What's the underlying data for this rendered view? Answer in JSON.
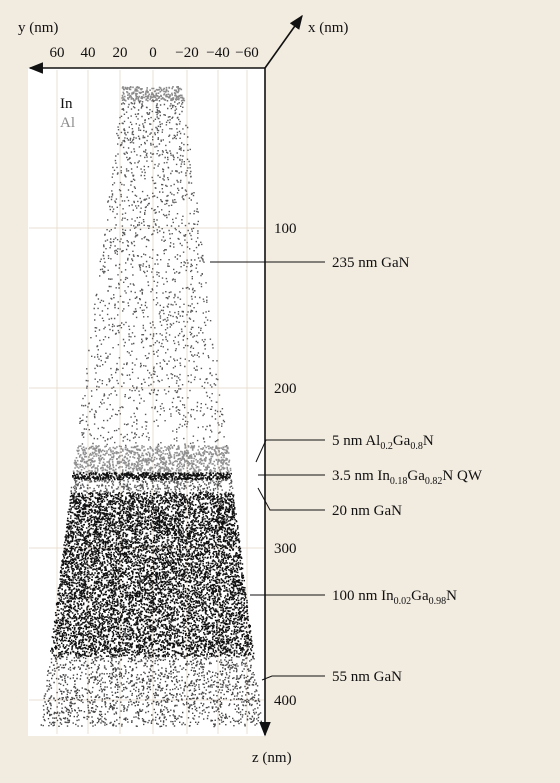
{
  "axes": {
    "y_label": "y (nm)",
    "x_label": "x (nm)",
    "z_label": "z (nm)",
    "y_ticks": [
      "60",
      "40",
      "20",
      "0",
      "−20",
      "−40",
      "−60"
    ],
    "z_ticks": [
      "100",
      "200",
      "300",
      "400"
    ]
  },
  "legend": [
    "In",
    "Al"
  ],
  "annotations": [
    [
      "235 nm GaN"
    ],
    [
      "5 nm Al",
      "0.2",
      "Ga",
      "0.8",
      "N"
    ],
    [
      "3.5 nm In",
      "0.18",
      "Ga",
      "0.82",
      "N QW"
    ],
    [
      "20 nm GaN"
    ],
    [
      "100 nm In",
      "0.02",
      "Ga",
      "0.98",
      "N"
    ],
    [
      "55 nm GaN"
    ]
  ]
}
